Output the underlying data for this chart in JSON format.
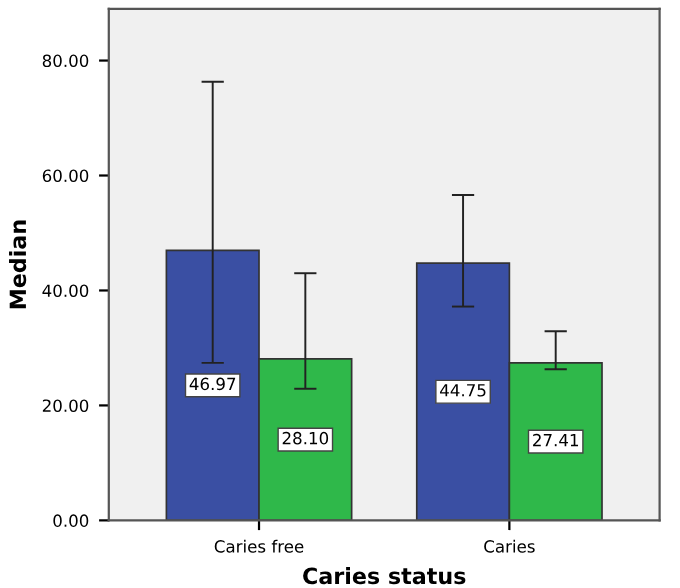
{
  "chart_data": {
    "type": "bar",
    "xlabel": "Caries status",
    "ylabel": "Median",
    "categories": [
      "Caries free",
      "Caries"
    ],
    "series": [
      {
        "color": "#3a4fa3",
        "values": [
          46.97,
          44.75
        ],
        "value_labels": [
          "46.97",
          "44.75"
        ],
        "errors": [
          [
            27.4,
            76.3
          ],
          [
            37.2,
            56.6
          ]
        ]
      },
      {
        "color": "#2fb84a",
        "values": [
          28.1,
          27.41
        ],
        "value_labels": [
          "28.10",
          "27.41"
        ],
        "errors": [
          [
            22.9,
            43.0
          ],
          [
            26.3,
            32.9
          ]
        ]
      }
    ],
    "ylim": [
      0,
      89
    ],
    "yticks": [
      {
        "value": 0,
        "label": "0.00"
      },
      {
        "value": 20,
        "label": "20.00"
      },
      {
        "value": 40,
        "label": "40.00"
      },
      {
        "value": 60,
        "label": "60.00"
      },
      {
        "value": 80,
        "label": "80.00"
      }
    ],
    "grid": false,
    "legend": false
  }
}
